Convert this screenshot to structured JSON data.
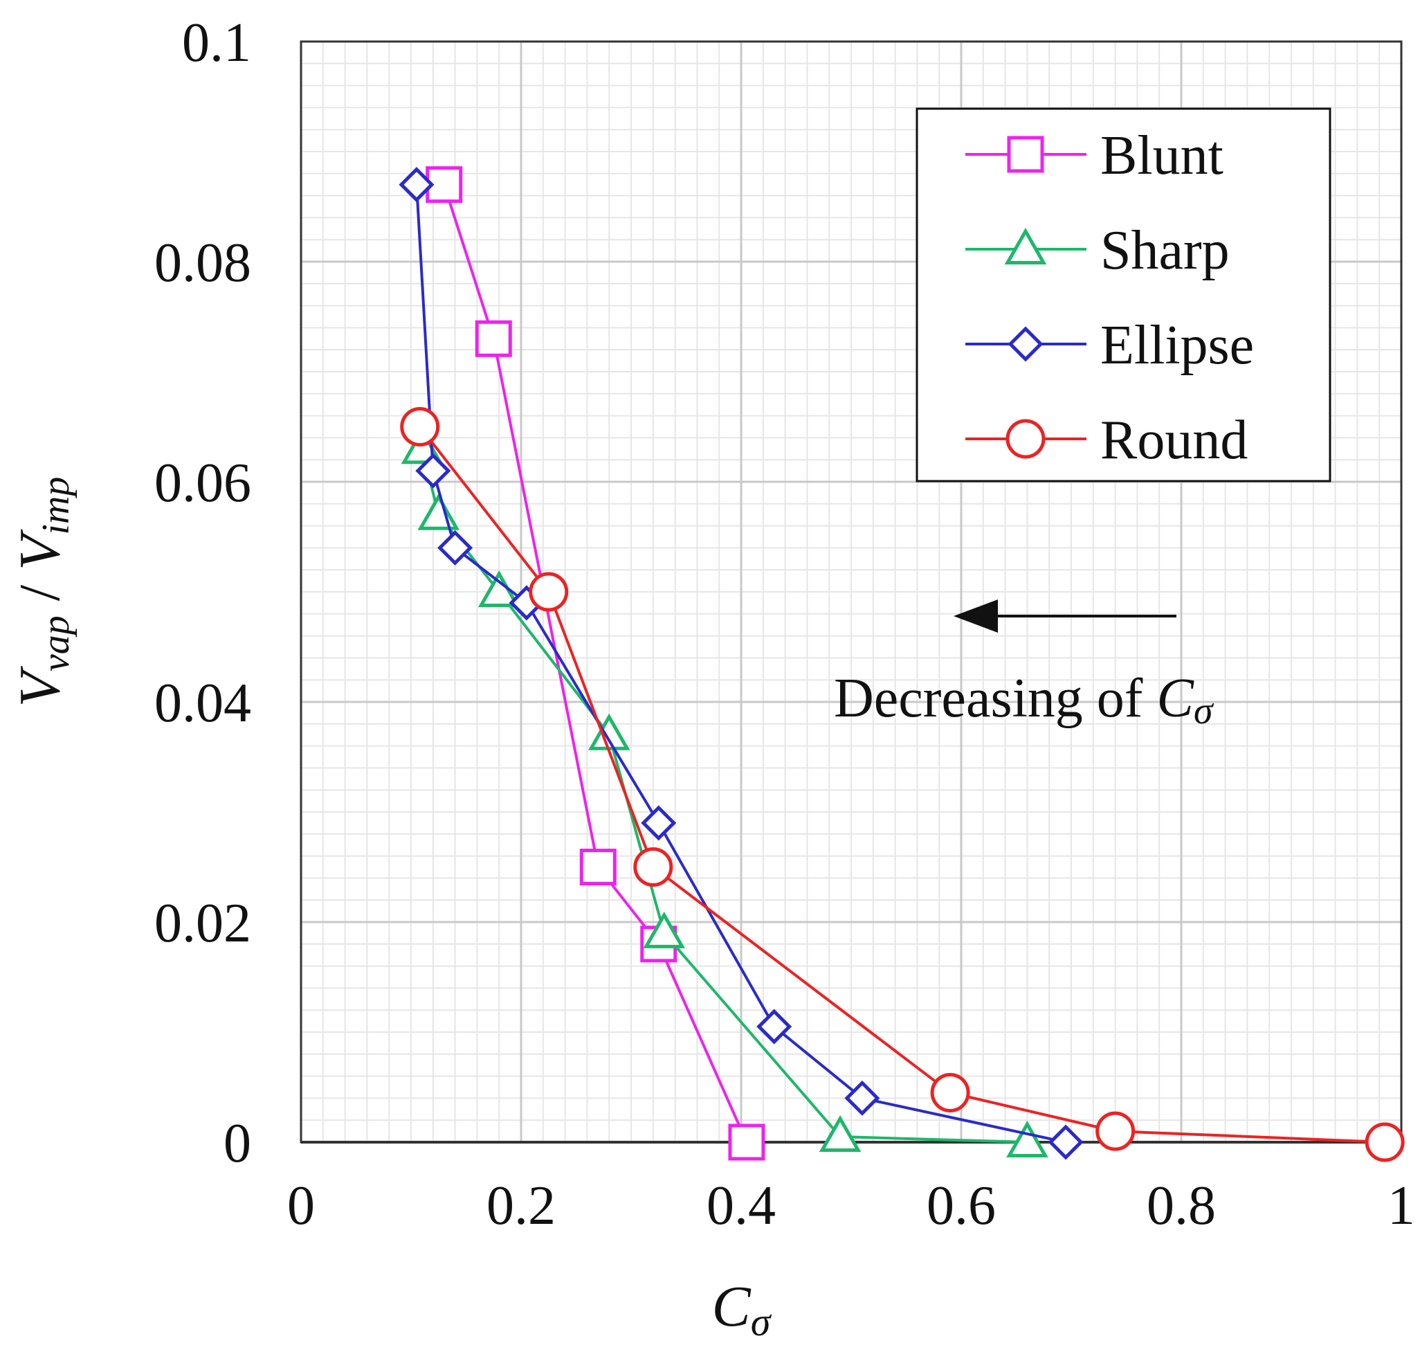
{
  "chart_data": {
    "type": "line",
    "title": "",
    "xlabel": {
      "main": "C",
      "sub": "σ"
    },
    "ylabel": {
      "main1": "V",
      "sub1": "vap",
      "sep": " / ",
      "main2": "V",
      "sub2": "imp"
    },
    "xlim": [
      0,
      1
    ],
    "ylim": [
      0,
      0.1
    ],
    "grid": true,
    "x_ticks": [
      0,
      0.2,
      0.4,
      0.6,
      0.8,
      1
    ],
    "x_tick_labels": [
      "0",
      "0.2",
      "0.4",
      "0.6",
      "0.8",
      "1"
    ],
    "y_ticks": [
      0,
      0.02,
      0.04,
      0.06,
      0.08,
      0.1
    ],
    "y_tick_labels": [
      "0",
      "0.02",
      "0.04",
      "0.06",
      "0.08",
      "0.1"
    ],
    "legend_position": "top-right",
    "series": [
      {
        "name": "Blunt",
        "color": "#ee22ee",
        "marker": "square",
        "points": [
          [
            0.13,
            0.087
          ],
          [
            0.175,
            0.073
          ],
          [
            0.27,
            0.025
          ],
          [
            0.325,
            0.018
          ],
          [
            0.405,
            0.0
          ]
        ]
      },
      {
        "name": "Sharp",
        "color": "#1db86a",
        "marker": "triangle",
        "points": [
          [
            0.11,
            0.063
          ],
          [
            0.125,
            0.057
          ],
          [
            0.18,
            0.05
          ],
          [
            0.28,
            0.037
          ],
          [
            0.33,
            0.019
          ],
          [
            0.49,
            0.0005
          ],
          [
            0.66,
            0.0
          ]
        ]
      },
      {
        "name": "Ellipse",
        "color": "#2a2acc",
        "marker": "diamond",
        "points": [
          [
            0.105,
            0.087
          ],
          [
            0.12,
            0.061
          ],
          [
            0.14,
            0.054
          ],
          [
            0.205,
            0.049
          ],
          [
            0.325,
            0.029
          ],
          [
            0.43,
            0.0105
          ],
          [
            0.51,
            0.004
          ],
          [
            0.695,
            0.0
          ]
        ]
      },
      {
        "name": "Round",
        "color": "#ee2222",
        "marker": "circle",
        "points": [
          [
            0.108,
            0.065
          ],
          [
            0.225,
            0.05
          ],
          [
            0.32,
            0.025
          ],
          [
            0.59,
            0.0045
          ],
          [
            0.74,
            0.001
          ],
          [
            0.985,
            0.0
          ]
        ]
      }
    ],
    "annotation": {
      "text": "Decreasing of ",
      "symbol_main": "C",
      "symbol_sub": "σ",
      "arrow_direction": "left"
    }
  }
}
